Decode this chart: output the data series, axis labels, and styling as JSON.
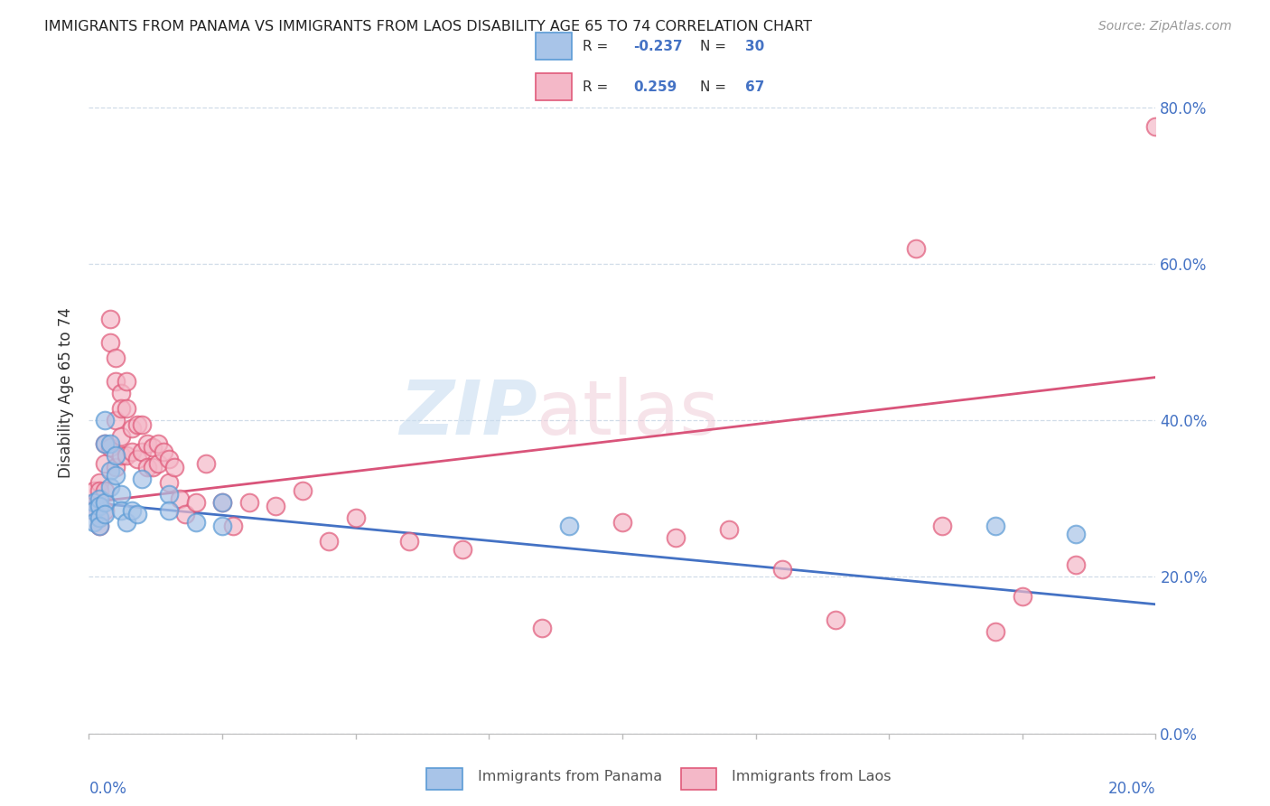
{
  "title": "IMMIGRANTS FROM PANAMA VS IMMIGRANTS FROM LAOS DISABILITY AGE 65 TO 74 CORRELATION CHART",
  "source": "Source: ZipAtlas.com",
  "ylabel": "Disability Age 65 to 74",
  "color_panama_fill": "#a8c4e8",
  "color_panama_edge": "#5b9bd5",
  "color_laos_fill": "#f4b8c8",
  "color_laos_edge": "#e05a7a",
  "color_line_panama": "#4472c4",
  "color_line_laos": "#d9547a",
  "color_text_blue": "#4472c4",
  "color_grid": "#d0dce8",
  "xlim": [
    0.0,
    0.2
  ],
  "ylim": [
    0.0,
    0.87
  ],
  "panama_x": [
    0.001,
    0.001,
    0.001,
    0.002,
    0.002,
    0.002,
    0.002,
    0.003,
    0.003,
    0.003,
    0.003,
    0.004,
    0.004,
    0.004,
    0.005,
    0.005,
    0.006,
    0.006,
    0.007,
    0.008,
    0.009,
    0.01,
    0.015,
    0.015,
    0.02,
    0.025,
    0.025,
    0.09,
    0.17,
    0.185
  ],
  "panama_y": [
    0.295,
    0.285,
    0.27,
    0.3,
    0.29,
    0.275,
    0.265,
    0.4,
    0.37,
    0.295,
    0.28,
    0.37,
    0.335,
    0.315,
    0.355,
    0.33,
    0.305,
    0.285,
    0.27,
    0.285,
    0.28,
    0.325,
    0.305,
    0.285,
    0.27,
    0.295,
    0.265,
    0.265,
    0.265,
    0.255
  ],
  "laos_x": [
    0.001,
    0.001,
    0.001,
    0.002,
    0.002,
    0.002,
    0.002,
    0.002,
    0.003,
    0.003,
    0.003,
    0.003,
    0.004,
    0.004,
    0.004,
    0.005,
    0.005,
    0.005,
    0.005,
    0.006,
    0.006,
    0.006,
    0.006,
    0.007,
    0.007,
    0.007,
    0.008,
    0.008,
    0.009,
    0.009,
    0.01,
    0.01,
    0.011,
    0.011,
    0.012,
    0.012,
    0.013,
    0.013,
    0.014,
    0.015,
    0.015,
    0.016,
    0.017,
    0.018,
    0.02,
    0.022,
    0.025,
    0.027,
    0.03,
    0.035,
    0.04,
    0.045,
    0.05,
    0.06,
    0.07,
    0.085,
    0.1,
    0.11,
    0.12,
    0.13,
    0.14,
    0.155,
    0.16,
    0.17,
    0.175,
    0.185,
    0.2
  ],
  "laos_y": [
    0.295,
    0.31,
    0.285,
    0.32,
    0.31,
    0.29,
    0.275,
    0.265,
    0.37,
    0.345,
    0.31,
    0.285,
    0.53,
    0.5,
    0.365,
    0.48,
    0.45,
    0.4,
    0.34,
    0.435,
    0.415,
    0.38,
    0.355,
    0.45,
    0.415,
    0.355,
    0.39,
    0.36,
    0.395,
    0.35,
    0.395,
    0.36,
    0.37,
    0.34,
    0.365,
    0.34,
    0.37,
    0.345,
    0.36,
    0.35,
    0.32,
    0.34,
    0.3,
    0.28,
    0.295,
    0.345,
    0.295,
    0.265,
    0.295,
    0.29,
    0.31,
    0.245,
    0.275,
    0.245,
    0.235,
    0.135,
    0.27,
    0.25,
    0.26,
    0.21,
    0.145,
    0.62,
    0.265,
    0.13,
    0.175,
    0.215,
    0.775
  ]
}
